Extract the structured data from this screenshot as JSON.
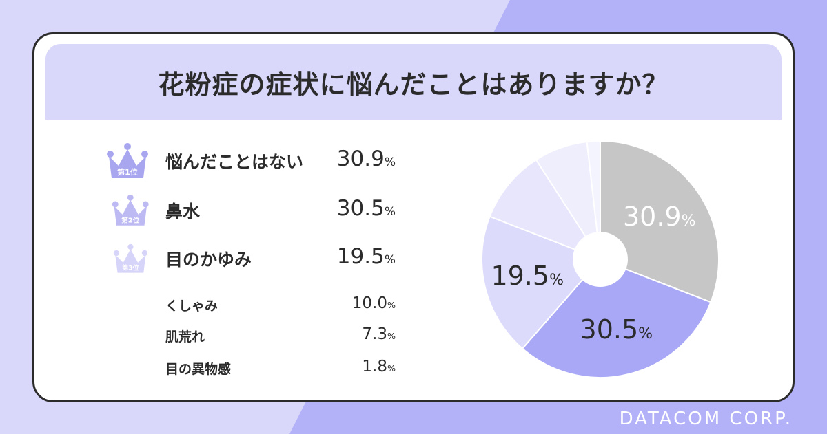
{
  "title": "花粉症の症状に悩んだことはありますか？",
  "footer": "DATACOM CORP.",
  "crowns": [
    "第1位",
    "第2位",
    "第3位"
  ],
  "colors": {
    "background": "#d9d8fb",
    "stripe": "#b3b1f8",
    "card": "#ffffff",
    "border": "#2b2b2b",
    "crown1": "#a9a6f0",
    "crown2": "#bdbaf3",
    "crown3": "#d6d4f8"
  },
  "rows": [
    {
      "label": "悩んだことはない",
      "value": "30.9",
      "unit": "%"
    },
    {
      "label": "鼻水",
      "value": "30.5",
      "unit": "%"
    },
    {
      "label": "目のかゆみ",
      "value": "19.5",
      "unit": "%"
    },
    {
      "label": "くしゃみ",
      "value": "10.0",
      "unit": "%"
    },
    {
      "label": "肌荒れ",
      "value": "7.3",
      "unit": "%"
    },
    {
      "label": "目の異物感",
      "value": "1.8",
      "unit": "%"
    }
  ],
  "chart_data": {
    "type": "pie",
    "categories": [
      "悩んだことはない",
      "鼻水",
      "目のかゆみ",
      "くしゃみ",
      "肌荒れ",
      "目の異物感"
    ],
    "values": [
      30.9,
      30.5,
      19.5,
      10.0,
      7.3,
      1.8
    ],
    "colors": [
      "#c6c6c6",
      "#a9a8f6",
      "#dcdbfb",
      "#e7e6fc",
      "#eeeefd",
      "#f4f4fe"
    ],
    "slice_labels": [
      "30.9",
      "30.5",
      "19.5",
      "",
      "",
      ""
    ],
    "unit": "%",
    "donut_hole": true
  }
}
